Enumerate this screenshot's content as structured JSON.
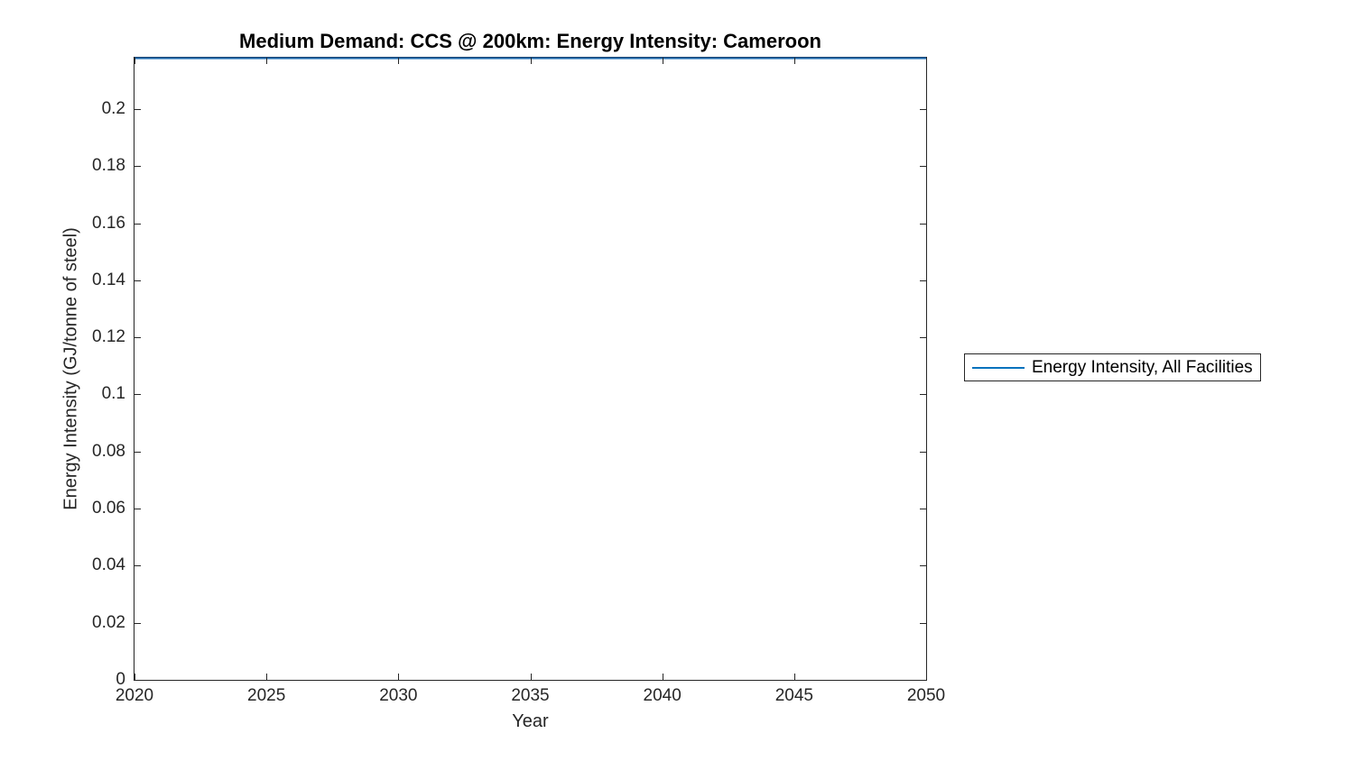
{
  "chart_data": {
    "type": "line",
    "title": "Medium Demand: CCS @ 200km: Energy Intensity: Cameroon",
    "xlabel": "Year",
    "ylabel": "Energy Intensity (GJ/tonne of steel)",
    "xlim": [
      2020,
      2050
    ],
    "ylim": [
      0,
      0.218
    ],
    "xticks": [
      "2020",
      "2025",
      "2030",
      "2035",
      "2040",
      "2045",
      "2050"
    ],
    "yticks": [
      {
        "value": 0,
        "label": "0"
      },
      {
        "value": 0.02,
        "label": "0.02"
      },
      {
        "value": 0.04,
        "label": "0.04"
      },
      {
        "value": 0.06,
        "label": "0.06"
      },
      {
        "value": 0.08,
        "label": "0.08"
      },
      {
        "value": 0.1,
        "label": "0.1"
      },
      {
        "value": 0.12,
        "label": "0.12"
      },
      {
        "value": 0.14,
        "label": "0.14"
      },
      {
        "value": 0.16,
        "label": "0.16"
      },
      {
        "value": 0.18,
        "label": "0.18"
      },
      {
        "value": 0.2,
        "label": "0.2"
      }
    ],
    "grid": false,
    "box": true,
    "tick_direction": "in",
    "legend": {
      "position": "outside-right",
      "entries": [
        {
          "label": "Energy Intensity, All Facilities",
          "color": "#0072BD"
        }
      ]
    },
    "series": [
      {
        "name": "Energy Intensity, All Facilities",
        "color": "#0072BD",
        "x": [
          2020,
          2050
        ],
        "values": [
          0.218,
          0.218
        ]
      }
    ]
  },
  "colors": {
    "axis": "#262626",
    "series_blue": "#0072BD",
    "background": "#ffffff",
    "title_text": "#000000"
  }
}
